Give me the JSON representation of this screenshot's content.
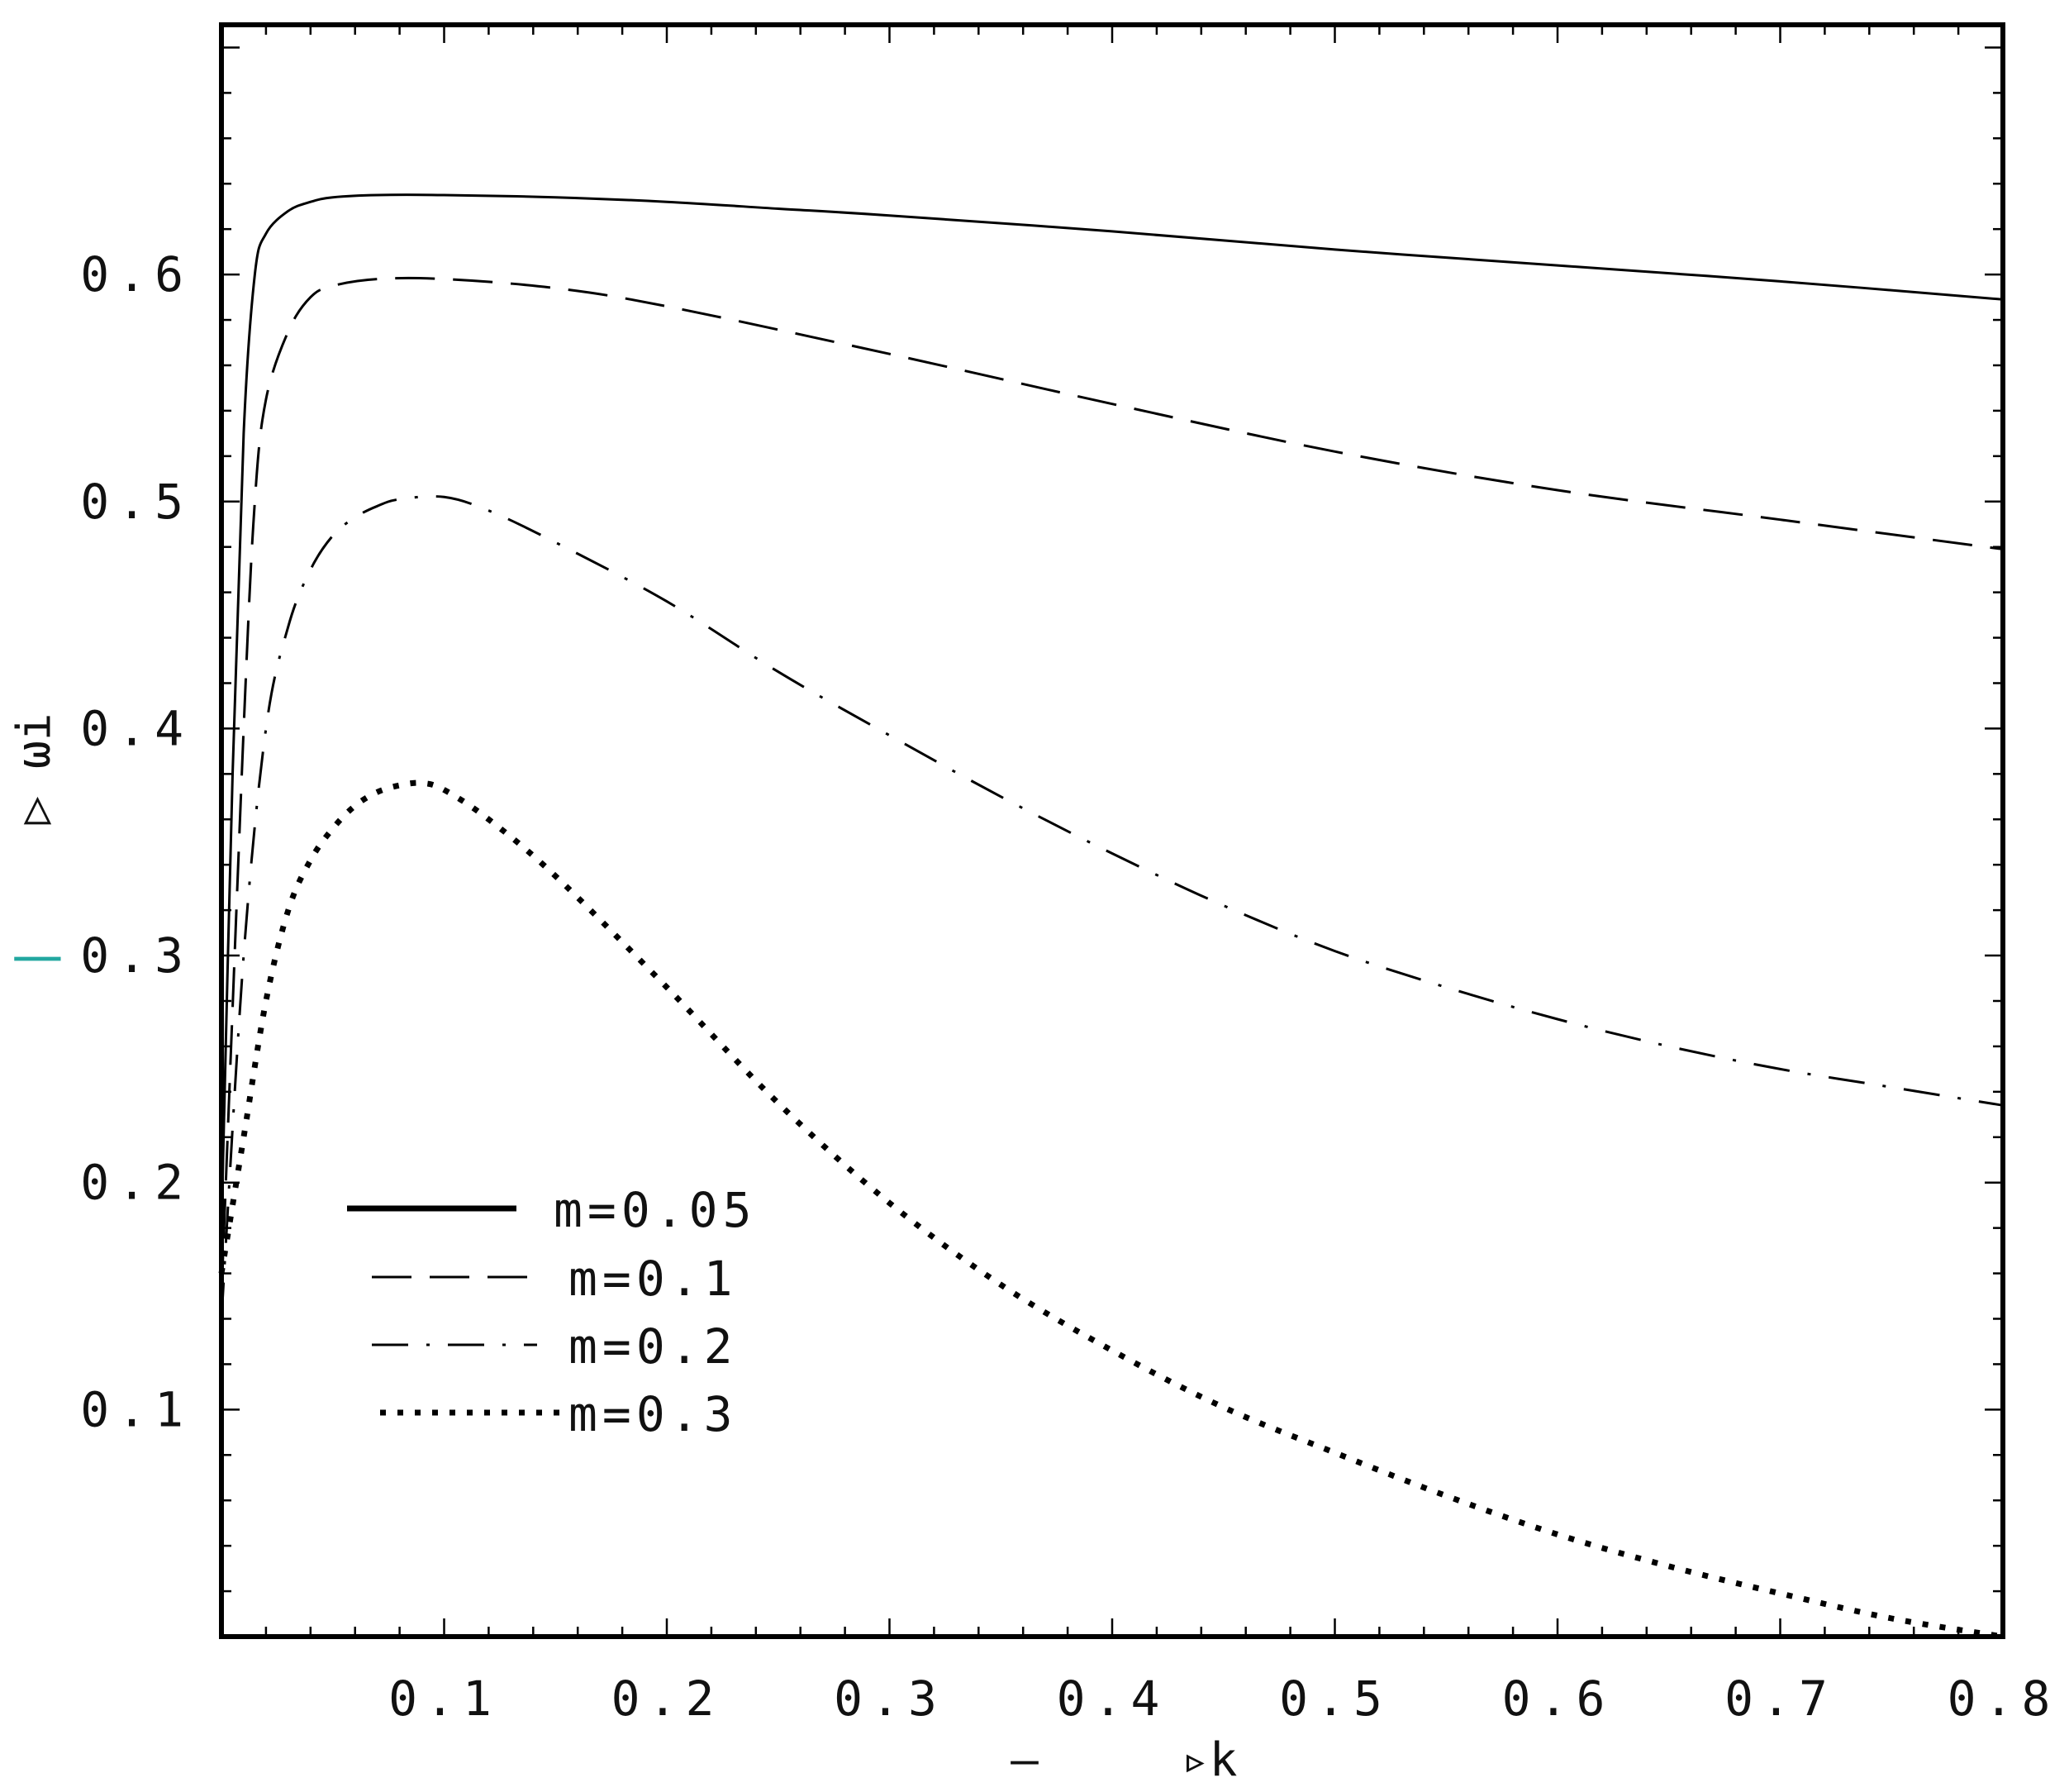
{
  "chart_data": {
    "type": "line",
    "title": "",
    "xlabel": "▹k",
    "ylabel": "▷ ωi",
    "xlim": [
      0,
      0.8
    ],
    "ylim": [
      0,
      0.71
    ],
    "xticks": [
      0.1,
      0.2,
      0.3,
      0.4,
      0.5,
      0.6,
      0.7,
      0.8
    ],
    "xtick_labels": [
      "0.1",
      "0.2",
      "0.3",
      "0.4",
      "0.5",
      "0.6",
      "0.7",
      "0.8"
    ],
    "yticks": [
      0.1,
      0.2,
      0.3,
      0.4,
      0.5,
      0.6
    ],
    "ytick_labels": [
      "0.1",
      "0.2",
      "0.3",
      "0.4",
      "0.5",
      "0.6"
    ],
    "grid": false,
    "legend_position": "lower-left",
    "series": [
      {
        "name": "m=0.05",
        "style": "solid",
        "x": [
          0.0,
          0.005,
          0.01,
          0.015,
          0.02,
          0.03,
          0.04,
          0.05,
          0.07,
          0.1,
          0.15,
          0.2,
          0.25,
          0.3,
          0.4,
          0.5,
          0.6,
          0.7,
          0.8
        ],
        "y": [
          0.18,
          0.38,
          0.53,
          0.6,
          0.618,
          0.628,
          0.632,
          0.634,
          0.635,
          0.635,
          0.634,
          0.632,
          0.629,
          0.626,
          0.619,
          0.611,
          0.604,
          0.597,
          0.589
        ]
      },
      {
        "name": "m=0.1",
        "style": "dashed",
        "x": [
          0.0,
          0.01,
          0.015,
          0.02,
          0.03,
          0.04,
          0.05,
          0.07,
          0.1,
          0.15,
          0.2,
          0.3,
          0.4,
          0.5,
          0.6,
          0.7,
          0.8
        ],
        "y": [
          0.15,
          0.4,
          0.5,
          0.545,
          0.575,
          0.59,
          0.595,
          0.598,
          0.598,
          0.594,
          0.586,
          0.565,
          0.543,
          0.522,
          0.505,
          0.492,
          0.479
        ]
      },
      {
        "name": "m=0.2",
        "style": "dash-dot",
        "x": [
          0.0,
          0.01,
          0.02,
          0.03,
          0.04,
          0.05,
          0.06,
          0.07,
          0.08,
          0.1,
          0.12,
          0.15,
          0.2,
          0.25,
          0.3,
          0.35,
          0.4,
          0.45,
          0.5,
          0.55,
          0.6,
          0.65,
          0.7,
          0.75,
          0.8
        ],
        "y": [
          0.14,
          0.3,
          0.4,
          0.445,
          0.47,
          0.485,
          0.493,
          0.498,
          0.501,
          0.502,
          0.496,
          0.482,
          0.456,
          0.425,
          0.397,
          0.37,
          0.345,
          0.322,
          0.302,
          0.286,
          0.272,
          0.26,
          0.25,
          0.242,
          0.234
        ]
      },
      {
        "name": "m=0.3",
        "style": "dotted",
        "x": [
          0.0,
          0.01,
          0.02,
          0.03,
          0.04,
          0.05,
          0.06,
          0.07,
          0.08,
          0.09,
          0.1,
          0.12,
          0.15,
          0.2,
          0.25,
          0.3,
          0.35,
          0.4,
          0.45,
          0.5,
          0.55,
          0.6,
          0.65,
          0.7,
          0.75,
          0.8
        ],
        "y": [
          0.16,
          0.22,
          0.28,
          0.32,
          0.342,
          0.356,
          0.366,
          0.372,
          0.375,
          0.376,
          0.373,
          0.36,
          0.335,
          0.286,
          0.235,
          0.191,
          0.155,
          0.126,
          0.101,
          0.081,
          0.062,
          0.045,
          0.031,
          0.019,
          0.008,
          0.0
        ]
      }
    ]
  },
  "axis_marks": {
    "left_lower": "|",
    "bottom_left": "—"
  }
}
